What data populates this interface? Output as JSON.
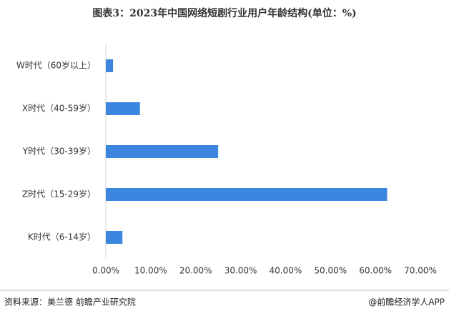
{
  "chart_data": {
    "type": "bar",
    "orientation": "horizontal",
    "title": "图表3：2023年中国网络短剧行业用户年龄结构(单位：%)",
    "categories": [
      "W时代（60岁以上）",
      "X时代（40-59岁）",
      "Y时代（30-39岁）",
      "Z时代（15-29岁）",
      "K时代（6-14岁）"
    ],
    "values": [
      1.6,
      7.6,
      25.0,
      62.6,
      3.7
    ],
    "color": "#3c86e0",
    "xlim": [
      0,
      70
    ],
    "xticks": [
      {
        "value": 0,
        "label": "0.00%"
      },
      {
        "value": 10,
        "label": "10.00%"
      },
      {
        "value": 20,
        "label": "20.00%"
      },
      {
        "value": 30,
        "label": "30.00%"
      },
      {
        "value": 40,
        "label": "40.00%"
      },
      {
        "value": 50,
        "label": "50.00%"
      },
      {
        "value": 60,
        "label": "60.00%"
      },
      {
        "value": 70,
        "label": "70.00%"
      }
    ],
    "grid": false,
    "source": "资料来源：美兰德 前瞻产业研究院",
    "credit": "@前瞻经济学人APP"
  }
}
